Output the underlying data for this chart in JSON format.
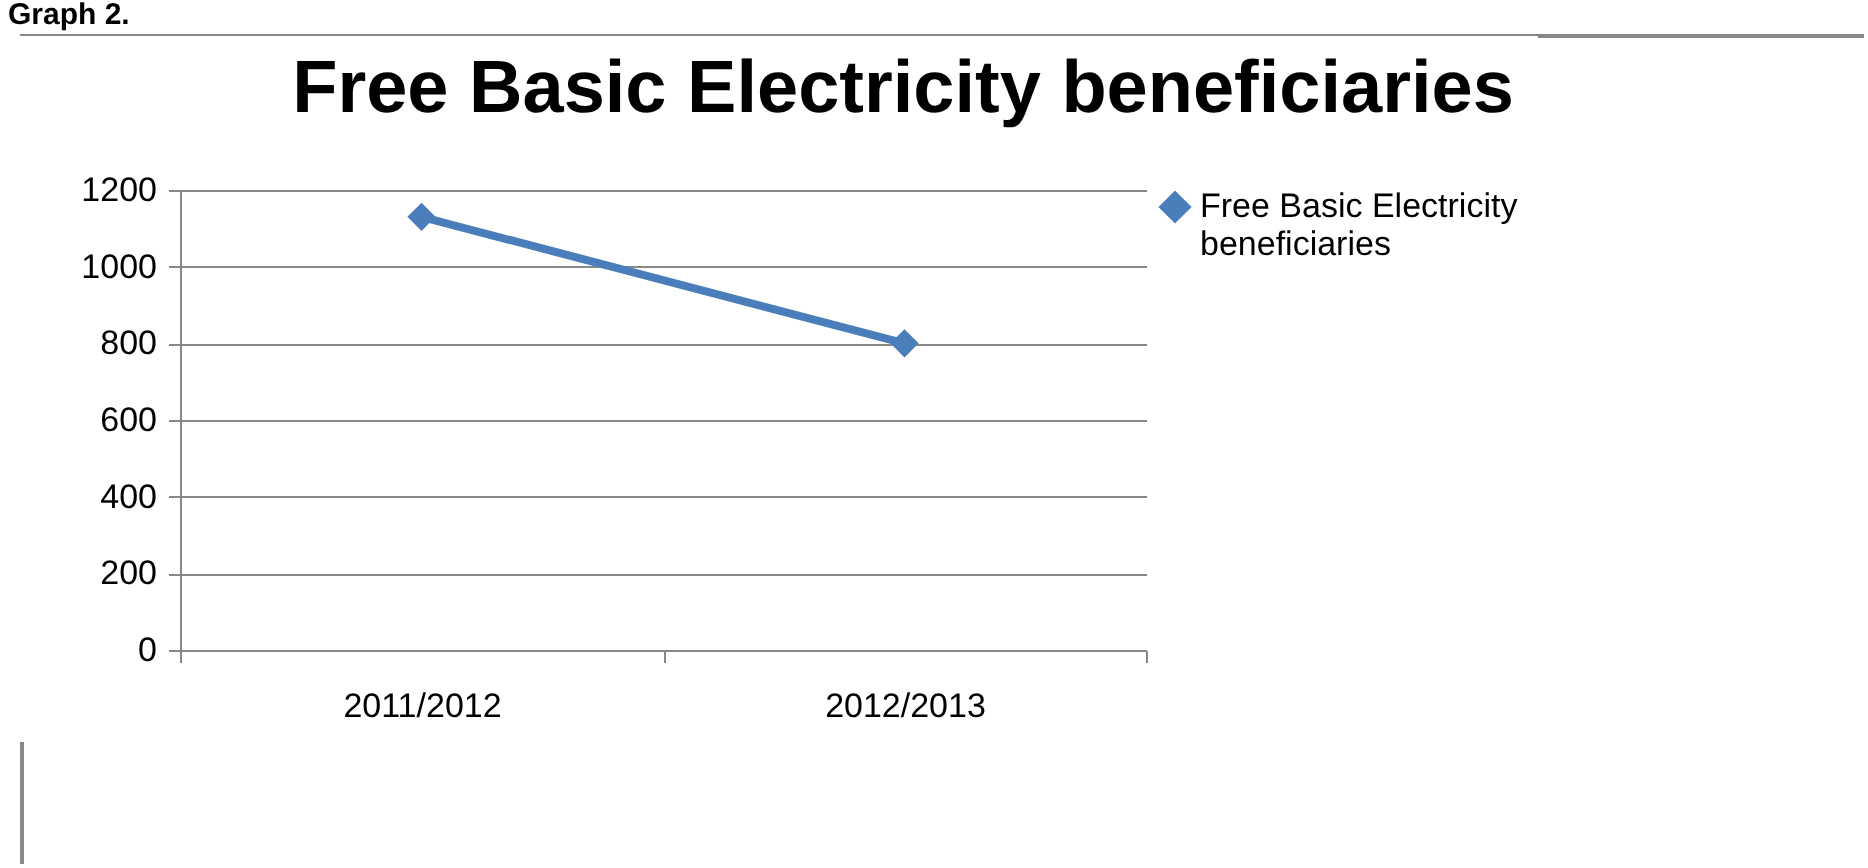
{
  "chart_data": {
    "type": "line",
    "title": "Free Basic Electricity beneficiaries",
    "annotations": [
      "Graph 2."
    ],
    "categories": [
      "2011/2012",
      "2012/2013"
    ],
    "series": [
      {
        "name": "Free Basic Electricity beneficiaries",
        "color": "#4a7ebb",
        "values": [
          1130,
          800
        ]
      }
    ],
    "ylim": [
      0,
      1200
    ],
    "yticks": [
      0,
      200,
      400,
      600,
      800,
      1000,
      1200
    ],
    "grid": "y",
    "legend": "right",
    "marker": "diamond"
  }
}
